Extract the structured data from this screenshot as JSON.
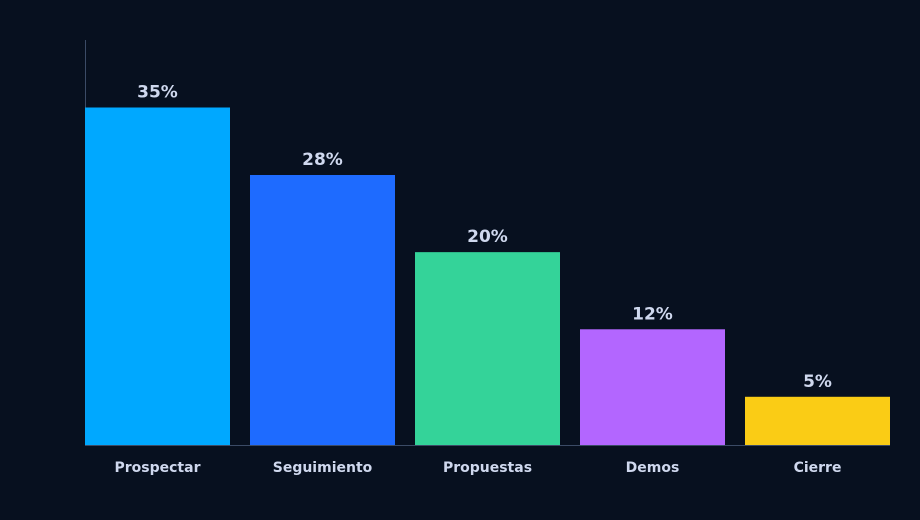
{
  "chart_data": {
    "type": "bar",
    "categories": [
      "Prospectar",
      "Seguimiento",
      "Propuestas",
      "Demos",
      "Cierre"
    ],
    "values": [
      35,
      28,
      20,
      12,
      5
    ],
    "value_labels": [
      "35%",
      "28%",
      "20%",
      "12%",
      "5%"
    ],
    "colors": [
      "#00a8ff",
      "#1e6bff",
      "#34d399",
      "#b366ff",
      "#facc15"
    ],
    "ylim": [
      0,
      42
    ]
  }
}
